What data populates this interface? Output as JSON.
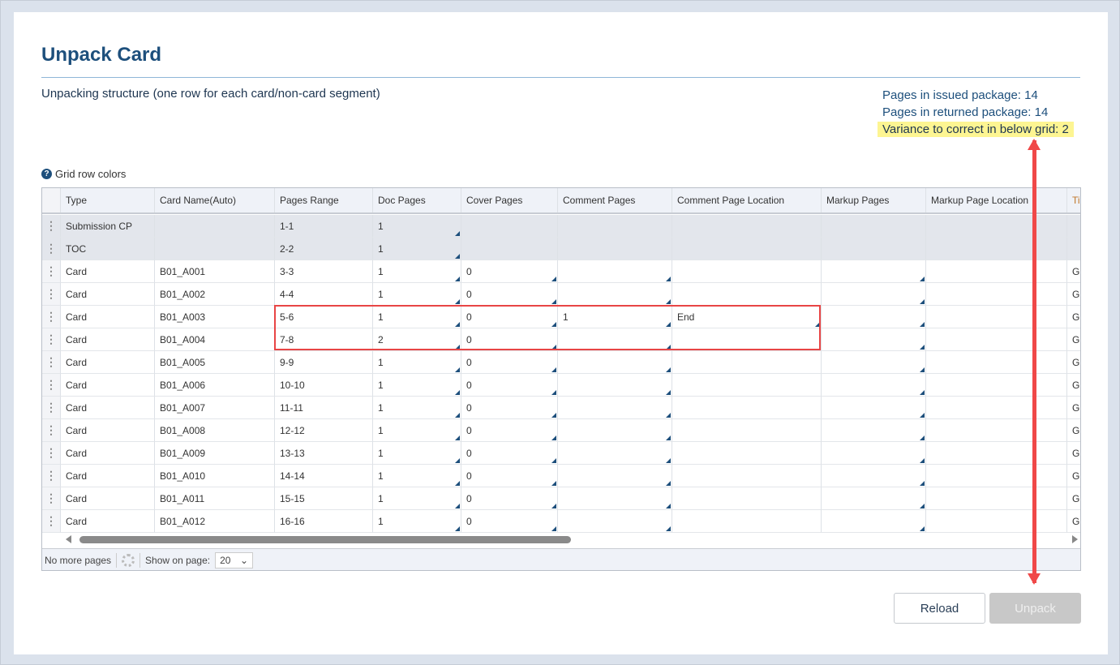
{
  "title": "Unpack Card",
  "subtitle": "Unpacking structure (one row for each card/non-card segment)",
  "stats": {
    "issued": "Pages in issued package: 14",
    "returned": "Pages in returned package: 14",
    "variance": "Variance to correct in below grid: 2"
  },
  "legend": {
    "icon": "question-circle-icon",
    "label": "Grid row colors"
  },
  "colors": {
    "accent": "#1d4f7c",
    "highlight": "#fdf592",
    "annotation": "#e84545",
    "gray_row": "#e3e6ec"
  },
  "grid": {
    "columns": [
      "Type",
      "Card Name(Auto)",
      "Pages Range",
      "Doc Pages",
      "Cover Pages",
      "Comment Pages",
      "Comment Page Location",
      "Markup Pages",
      "Markup Page Location",
      "Ti"
    ],
    "rows": [
      {
        "type": "Submission CP",
        "name": "",
        "range": "1-1",
        "doc": "1",
        "cover": "",
        "cpages": "",
        "cloc": "",
        "mpages": "",
        "mloc": "",
        "ti": "",
        "gray": true
      },
      {
        "type": "TOC",
        "name": "",
        "range": "2-2",
        "doc": "1",
        "cover": "",
        "cpages": "",
        "cloc": "",
        "mpages": "",
        "mloc": "",
        "ti": "",
        "gray": true
      },
      {
        "type": "Card",
        "name": "B01_A001",
        "range": "3-3",
        "doc": "1",
        "cover": "0",
        "cpages": "",
        "cloc": "",
        "mpages": "",
        "mloc": "",
        "ti": "G"
      },
      {
        "type": "Card",
        "name": "B01_A002",
        "range": "4-4",
        "doc": "1",
        "cover": "0",
        "cpages": "",
        "cloc": "",
        "mpages": "",
        "mloc": "",
        "ti": "G"
      },
      {
        "type": "Card",
        "name": "B01_A003",
        "range": "5-6",
        "doc": "1",
        "cover": "0",
        "cpages": "1",
        "cloc": "End",
        "mpages": "",
        "mloc": "",
        "ti": "G"
      },
      {
        "type": "Card",
        "name": "B01_A004",
        "range": "7-8",
        "doc": "2",
        "cover": "0",
        "cpages": "",
        "cloc": "",
        "mpages": "",
        "mloc": "",
        "ti": "G"
      },
      {
        "type": "Card",
        "name": "B01_A005",
        "range": "9-9",
        "doc": "1",
        "cover": "0",
        "cpages": "",
        "cloc": "",
        "mpages": "",
        "mloc": "",
        "ti": "G"
      },
      {
        "type": "Card",
        "name": "B01_A006",
        "range": "10-10",
        "doc": "1",
        "cover": "0",
        "cpages": "",
        "cloc": "",
        "mpages": "",
        "mloc": "",
        "ti": "G"
      },
      {
        "type": "Card",
        "name": "B01_A007",
        "range": "11-11",
        "doc": "1",
        "cover": "0",
        "cpages": "",
        "cloc": "",
        "mpages": "",
        "mloc": "",
        "ti": "G"
      },
      {
        "type": "Card",
        "name": "B01_A008",
        "range": "12-12",
        "doc": "1",
        "cover": "0",
        "cpages": "",
        "cloc": "",
        "mpages": "",
        "mloc": "",
        "ti": "G"
      },
      {
        "type": "Card",
        "name": "B01_A009",
        "range": "13-13",
        "doc": "1",
        "cover": "0",
        "cpages": "",
        "cloc": "",
        "mpages": "",
        "mloc": "",
        "ti": "G"
      },
      {
        "type": "Card",
        "name": "B01_A010",
        "range": "14-14",
        "doc": "1",
        "cover": "0",
        "cpages": "",
        "cloc": "",
        "mpages": "",
        "mloc": "",
        "ti": "G"
      },
      {
        "type": "Card",
        "name": "B01_A011",
        "range": "15-15",
        "doc": "1",
        "cover": "0",
        "cpages": "",
        "cloc": "",
        "mpages": "",
        "mloc": "",
        "ti": "G"
      },
      {
        "type": "Card",
        "name": "B01_A012",
        "range": "16-16",
        "doc": "1",
        "cover": "0",
        "cpages": "",
        "cloc": "",
        "mpages": "",
        "mloc": "",
        "ti": "G"
      }
    ]
  },
  "footer": {
    "paging": "No more pages",
    "show_label": "Show on page:",
    "page_size": "20"
  },
  "buttons": {
    "reload": "Reload",
    "unpack": "Unpack"
  }
}
